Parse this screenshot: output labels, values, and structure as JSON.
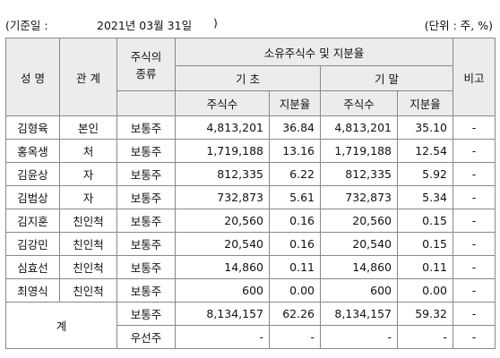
{
  "header": {
    "date_prefix": "(기준일 :",
    "date": "2021년 03월 31일",
    "date_suffix": ")",
    "unit": "(단위 : 주, %)"
  },
  "table": {
    "columns": {
      "name": "성 명",
      "relation": "관 계",
      "stock_type": [
        "주식의",
        "종류"
      ],
      "holding": "소유주식수 및 지분율",
      "begin": "기 초",
      "end": "기 말",
      "shares_begin": "주식수",
      "ratio_begin": "지분율",
      "shares_end": "주식수",
      "ratio_end": "지분율",
      "note": "비고"
    },
    "rows": [
      [
        "김형육",
        "본인",
        "보통주",
        "4,813,201",
        "36.84",
        "4,813,201",
        "35.10",
        "-"
      ],
      [
        "홍옥생",
        "처",
        "보통주",
        "1,719,188",
        "13.16",
        "1,719,188",
        "12.54",
        "-"
      ],
      [
        "김윤상",
        "자",
        "보통주",
        "812,335",
        "6.22",
        "812,335",
        "5.92",
        "-"
      ],
      [
        "김범상",
        "자",
        "보통주",
        "732,873",
        "5.61",
        "732,873",
        "5.34",
        "-"
      ],
      [
        "김지훈",
        "친인척",
        "보통주",
        "20,560",
        "0.16",
        "20,560",
        "0.15",
        "-"
      ],
      [
        "김강민",
        "친인척",
        "보통주",
        "20,540",
        "0.16",
        "20,540",
        "0.15",
        "-"
      ],
      [
        "심효선",
        "친인척",
        "보통주",
        "14,860",
        "0.11",
        "14,860",
        "0.11",
        "-"
      ],
      [
        "최영식",
        "친인척",
        "보통주",
        "600",
        "0.00",
        "600",
        "0.00",
        "-"
      ]
    ],
    "total": {
      "label": "계",
      "rows": [
        [
          "보통주",
          "8,134,157",
          "62.26",
          "8,134,157",
          "59.32",
          "-"
        ],
        [
          "우선주",
          "-",
          "-",
          "-",
          "-",
          "-"
        ]
      ]
    }
  }
}
